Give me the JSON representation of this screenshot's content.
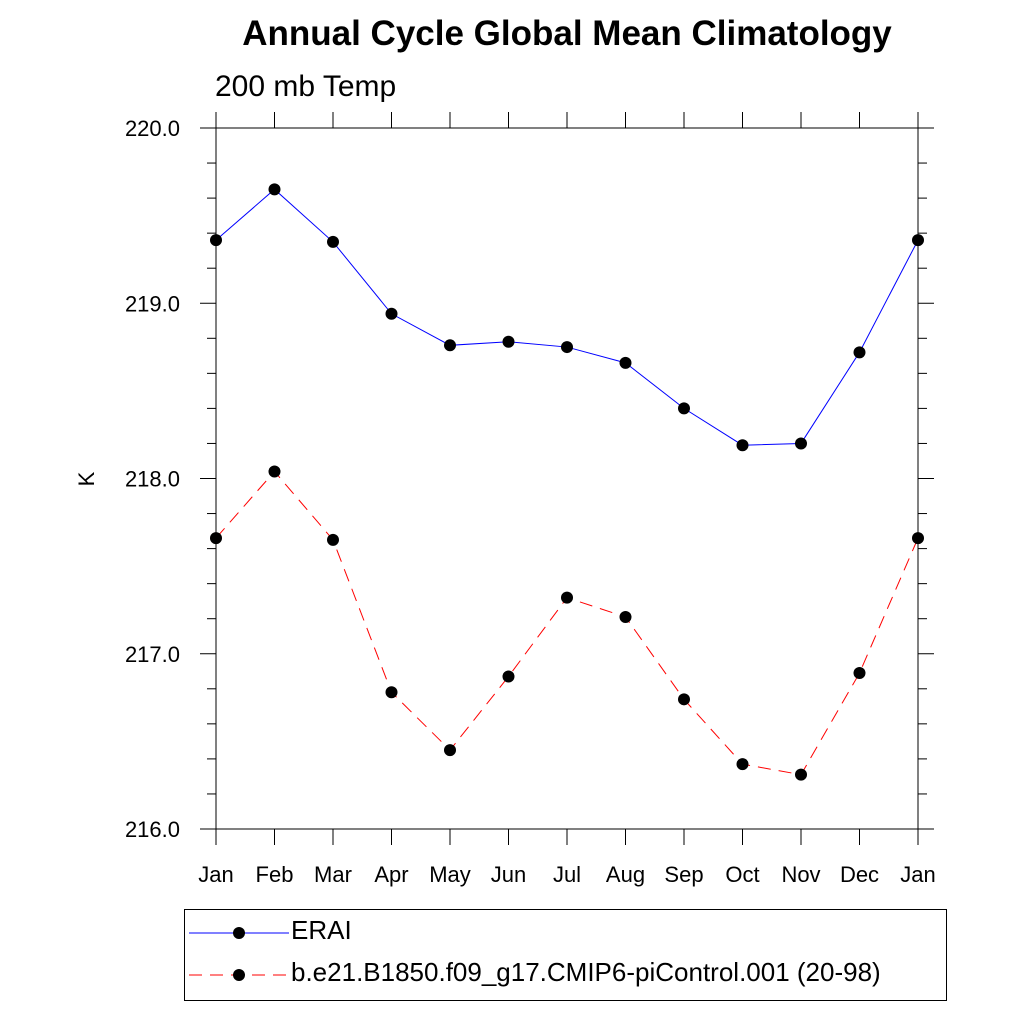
{
  "chart_data": {
    "type": "line",
    "title": "Annual Cycle Global Mean Climatology",
    "subtitle": "200 mb Temp",
    "ylabel": "K",
    "xlabel": "",
    "categories": [
      "Jan",
      "Feb",
      "Mar",
      "Apr",
      "May",
      "Jun",
      "Jul",
      "Aug",
      "Sep",
      "Oct",
      "Nov",
      "Dec",
      "Jan"
    ],
    "ylim": [
      216.0,
      220.0
    ],
    "yticks": [
      "216.0",
      "217.0",
      "218.0",
      "219.0",
      "220.0"
    ],
    "legend_position": "bottom",
    "grid": false,
    "series": [
      {
        "name": "ERAI",
        "color": "#0000ff",
        "line_style": "solid",
        "marker": "filled-circle",
        "values": [
          219.36,
          219.65,
          219.35,
          218.94,
          218.76,
          218.78,
          218.75,
          218.66,
          218.4,
          218.19,
          218.2,
          218.72,
          219.36
        ]
      },
      {
        "name": "b.e21.B1850.f09_g17.CMIP6-piControl.001 (20-98)",
        "color": "#ff0000",
        "line_style": "dashed",
        "marker": "filled-circle",
        "values": [
          217.66,
          218.04,
          217.65,
          216.78,
          216.45,
          216.87,
          217.32,
          217.21,
          216.74,
          216.37,
          216.31,
          216.89,
          217.66
        ]
      }
    ]
  }
}
